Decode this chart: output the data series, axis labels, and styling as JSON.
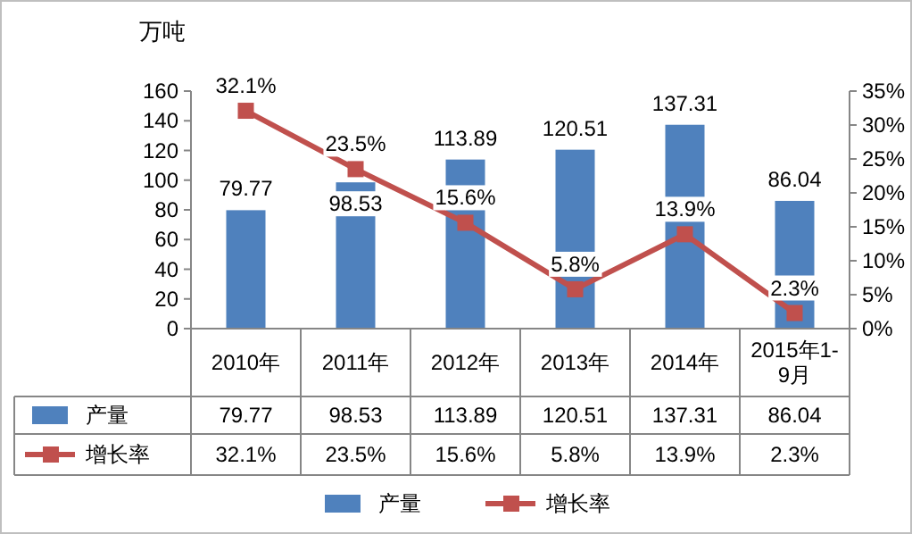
{
  "chart_data": {
    "type": "bar",
    "ylabel": "万吨",
    "categories": [
      "2010年",
      "2011年",
      "2012年",
      "2013年",
      "2014年",
      "2015年1-9月"
    ],
    "series": [
      {
        "name": "产量",
        "color": "#4f81bd",
        "values": [
          79.77,
          98.53,
          113.89,
          120.51,
          137.31,
          86.04
        ],
        "value_labels": [
          "79.77",
          "98.53",
          "113.89",
          "120.51",
          "137.31",
          "86.04"
        ]
      },
      {
        "name": "增长率",
        "type": "line",
        "axis": "y2",
        "color": "#c0504d",
        "values": [
          32.1,
          23.5,
          15.6,
          5.8,
          13.9,
          2.3
        ],
        "value_labels": [
          "32.1%",
          "23.5%",
          "15.6%",
          "5.8%",
          "13.9%",
          "2.3%"
        ]
      }
    ],
    "ylim": [
      0,
      160
    ],
    "yticks": [
      0,
      20,
      40,
      60,
      80,
      100,
      120,
      140,
      160
    ],
    "y2lim": [
      0,
      35
    ],
    "y2ticks": [
      {
        "value": 0,
        "label": "0%"
      },
      {
        "value": 5,
        "label": "5%"
      },
      {
        "value": 10,
        "label": "10%"
      },
      {
        "value": 15,
        "label": "15%"
      },
      {
        "value": 20,
        "label": "20%"
      },
      {
        "value": 25,
        "label": "25%"
      },
      {
        "value": 30,
        "label": "30%"
      },
      {
        "value": 35,
        "label": "35%"
      }
    ],
    "marker": "square",
    "legend": "bottom"
  }
}
